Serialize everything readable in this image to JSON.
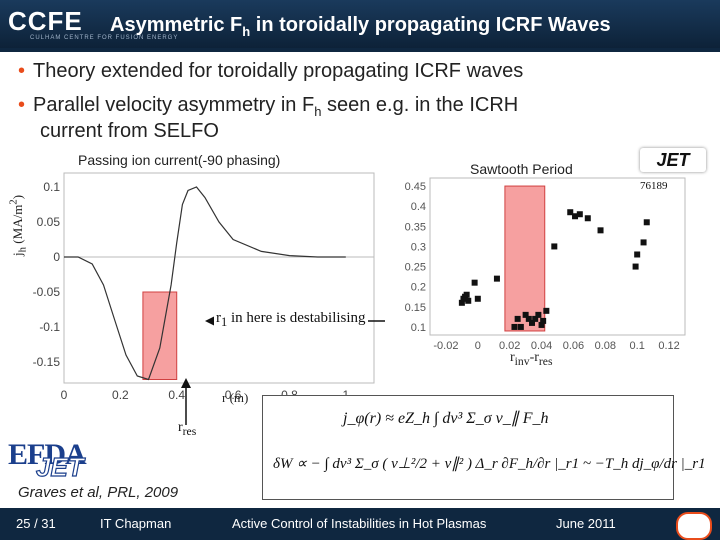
{
  "header": {
    "logo": "CCFE",
    "logo_sub": "CULHAM CENTRE FOR FUSION ENERGY",
    "title_main": "Asymmetric F",
    "title_sub": "h",
    "title_rest": " in toroidally propagating ICRF Waves"
  },
  "bullets": [
    {
      "text": "Theory extended for toroidally propagating ICRF waves"
    },
    {
      "text_before": "Parallel velocity asymmetry in F",
      "text_sub": "h",
      "text_after": " seen e.g. in the ICRH",
      "text_line2": "current from SELFO"
    }
  ],
  "left_plot": {
    "title": "Passing ion current(-90 phasing)",
    "ylabel_main": "j",
    "ylabel_sub": "h",
    "ylabel_rest": " (MA/m",
    "ylabel_sup": "2",
    "ylabel_close": ")",
    "xlabel": "r (m)",
    "yticks": [
      "0.1",
      "0.05",
      "0",
      "-0.05",
      "-0.1",
      "-0.15"
    ],
    "xticks": [
      "0",
      "0.2",
      "0.4",
      "0.6",
      "0.8",
      "1"
    ],
    "xlim": [
      0,
      1.1
    ],
    "ylim": [
      -0.18,
      0.12
    ],
    "curve": {
      "x": [
        0,
        0.05,
        0.1,
        0.14,
        0.18,
        0.22,
        0.26,
        0.3,
        0.34,
        0.38,
        0.4,
        0.42,
        0.44,
        0.47,
        0.5,
        0.55,
        0.6,
        0.7,
        0.8,
        0.9,
        1.0
      ],
      "y": [
        0,
        0,
        -0.01,
        -0.04,
        -0.09,
        -0.14,
        -0.17,
        -0.175,
        -0.13,
        -0.04,
        0.02,
        0.075,
        0.095,
        0.1,
        0.085,
        0.05,
        0.025,
        0.008,
        0.002,
        0,
        0
      ]
    },
    "shaded_region": [
      0.28,
      0.4
    ]
  },
  "right_plot": {
    "title": "Sawtooth Period",
    "logo": "JET",
    "shot": "76189",
    "xlabel_main": "r",
    "xlabel_sub1": "inv",
    "xlabel_mid": "-r",
    "xlabel_sub2": "res",
    "yticks": [
      "0.45",
      "0.4",
      "0.35",
      "0.3",
      "0.25",
      "0.2",
      "0.15",
      "0.1"
    ],
    "xticks": [
      "-0.02",
      "0",
      "0.02",
      "0.04",
      "0.06",
      "0.08",
      "0.1",
      "0.12"
    ],
    "xlim": [
      -0.03,
      0.13
    ],
    "ylim": [
      0.08,
      0.47
    ],
    "shaded_region": [
      0.017,
      0.042
    ],
    "points": {
      "x": [
        -0.01,
        -0.009,
        -0.008,
        -0.007,
        -0.006,
        -0.002,
        0.0,
        0.012,
        0.023,
        0.025,
        0.027,
        0.03,
        0.032,
        0.034,
        0.036,
        0.038,
        0.04,
        0.041,
        0.043,
        0.048,
        0.058,
        0.061,
        0.064,
        0.069,
        0.077,
        0.099,
        0.1,
        0.104,
        0.106
      ],
      "y": [
        0.16,
        0.17,
        0.175,
        0.18,
        0.165,
        0.21,
        0.17,
        0.22,
        0.1,
        0.12,
        0.1,
        0.13,
        0.12,
        0.11,
        0.12,
        0.13,
        0.105,
        0.115,
        0.14,
        0.3,
        0.385,
        0.375,
        0.38,
        0.37,
        0.34,
        0.25,
        0.28,
        0.31,
        0.36
      ]
    }
  },
  "annotations": {
    "r1_main": "r",
    "r1_sub": "1",
    "r1_rest": " in here is destabilising",
    "rres_main": "r",
    "rres_sub": "res"
  },
  "logos": {
    "efda": "EFDA",
    "jet": "JET"
  },
  "citation": "Graves et al, PRL, 2009",
  "equations": {
    "eq1": "j_φ(r) ≈ eZ_h ∫ dv³ Σ_σ v_∥ F_h",
    "eq2": "δW ∝ − ∫ dv³ Σ_σ ( v⊥²/2 + v∥² ) Δ_r ∂F_h/∂r |_r1 ~ −T_h dj_φ/dr |_r1"
  },
  "footer": {
    "page": "25 / 31",
    "author": "IT Chapman",
    "talk": "Active Control of Instabilities in Hot Plasmas",
    "date": "June 2011"
  },
  "colors": {
    "accent": "#e94c1b",
    "header": "#0f2740",
    "shade": "#f6a0a0"
  }
}
